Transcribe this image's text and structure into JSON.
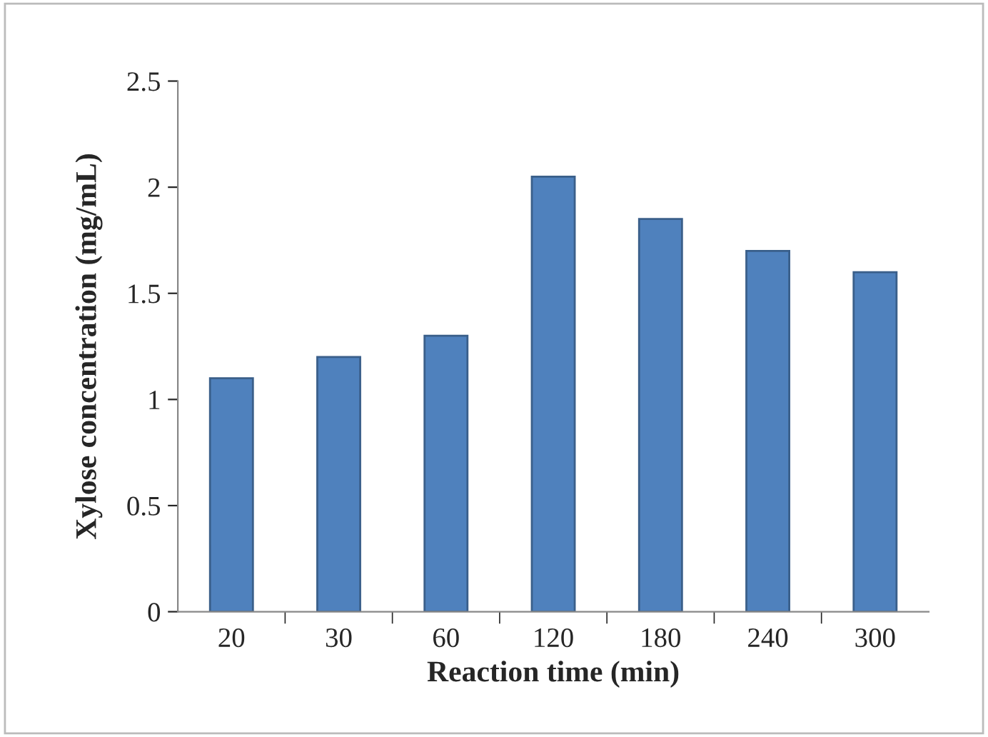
{
  "chart_data": {
    "type": "bar",
    "xlabel": "Reaction time (min)",
    "ylabel": "Xylose concentration (mg/mL)",
    "categories": [
      "20",
      "30",
      "60",
      "120",
      "180",
      "240",
      "300"
    ],
    "values": [
      1.1,
      1.2,
      1.3,
      2.05,
      1.85,
      1.7,
      1.6
    ],
    "color": "#4f81bd",
    "ylim": [
      0,
      2.5
    ],
    "yticks": [
      0,
      0.5,
      1,
      1.5,
      2,
      2.5
    ],
    "grid": false
  }
}
